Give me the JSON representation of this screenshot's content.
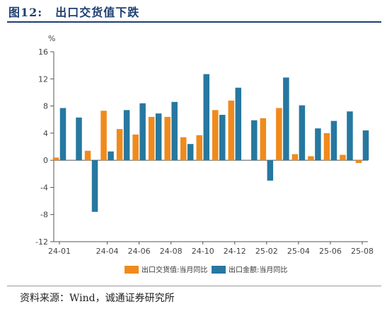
{
  "figure": {
    "label": "图12:",
    "title": "出口交货值下跌",
    "source": "资料来源：Wind，诚通证券研究所"
  },
  "colors": {
    "series1": "#f08a1c",
    "series2": "#2678a0",
    "title": "#1f3f73"
  },
  "chart_data": {
    "type": "bar",
    "unit_label": "%",
    "ylim": [
      -12,
      16
    ],
    "yticks": [
      16,
      12,
      8,
      4,
      0,
      -4,
      -8,
      -12
    ],
    "categories": [
      "24-01",
      "24-02",
      "24-03",
      "24-04",
      "24-05",
      "24-06",
      "24-07",
      "24-08",
      "24-09",
      "24-10",
      "24-11",
      "24-12",
      "25-01",
      "25-02",
      "25-03",
      "25-04",
      "25-05",
      "25-06",
      "25-07",
      "25-08"
    ],
    "xtick_labels": [
      "24-01",
      "24-04",
      "24-06",
      "24-08",
      "24-10",
      "24-12",
      "25-02",
      "25-04",
      "25-06",
      "25-08"
    ],
    "series": [
      {
        "name": "出口交货值:当月同比",
        "values": [
          0.4,
          null,
          1.4,
          7.3,
          4.6,
          3.8,
          6.4,
          6.4,
          3.4,
          3.7,
          7.4,
          8.8,
          null,
          6.2,
          7.7,
          0.9,
          0.6,
          4.0,
          0.8,
          -0.4
        ]
      },
      {
        "name": "出口金额:当月同比",
        "values": [
          7.7,
          6.3,
          -7.6,
          1.3,
          7.4,
          8.4,
          6.9,
          8.6,
          2.4,
          12.7,
          6.7,
          10.7,
          5.9,
          -3.0,
          12.2,
          8.1,
          4.7,
          5.8,
          7.2,
          4.4
        ]
      }
    ],
    "legend_position": "bottom",
    "grid": false
  }
}
